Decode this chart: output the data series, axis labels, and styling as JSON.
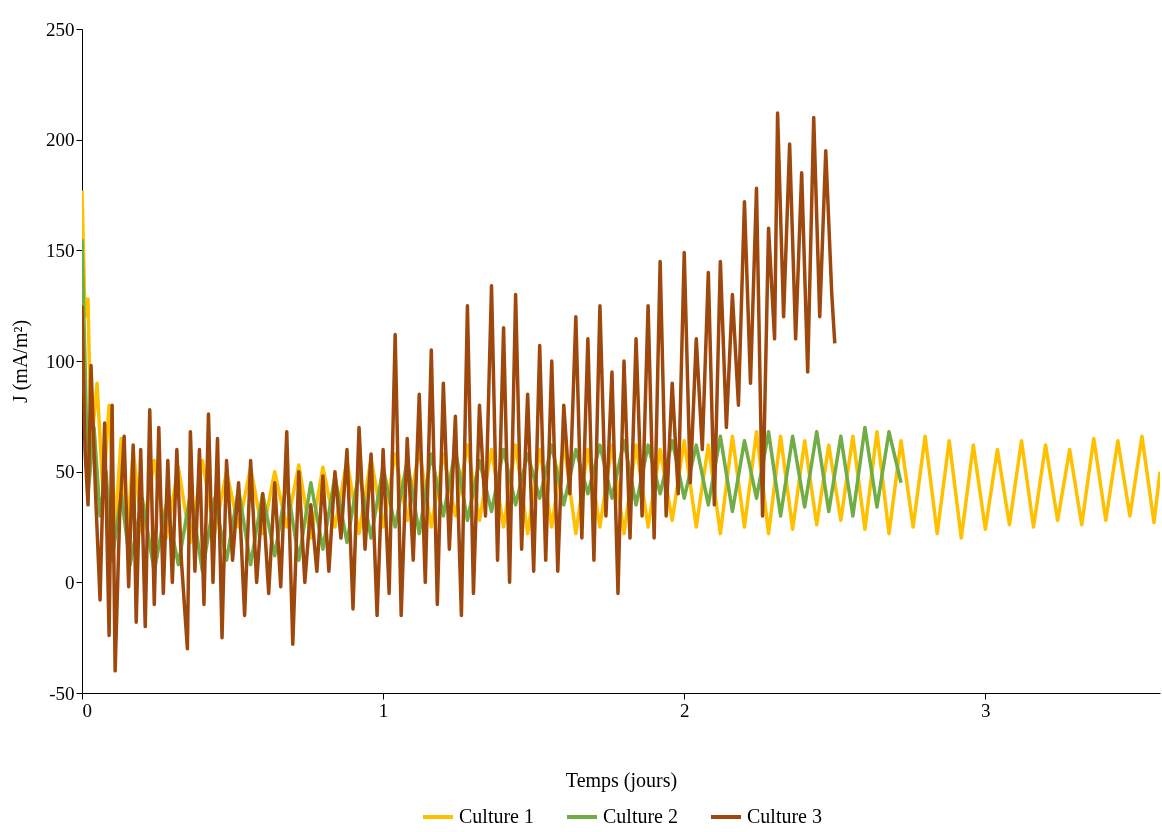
{
  "chart_data": {
    "type": "line",
    "xlabel": "Temps (jours)",
    "ylabel": "J (mA/m²)",
    "xlim": [
      0,
      3.58
    ],
    "xticks": [
      0,
      1,
      2,
      3
    ],
    "ylim": [
      -50,
      250
    ],
    "yticks": [
      -50,
      0,
      50,
      100,
      150,
      200,
      250
    ],
    "grid": false,
    "legend": "bottom",
    "marker": "none",
    "line_style": "solid",
    "series": [
      {
        "name": "Culture 1",
        "color": "#ffc000",
        "x": [
          0,
          0.01,
          0.02,
          0.03,
          0.05,
          0.07,
          0.09,
          0.11,
          0.13,
          0.15,
          0.17,
          0.2,
          0.24,
          0.28,
          0.32,
          0.36,
          0.4,
          0.44,
          0.48,
          0.52,
          0.56,
          0.6,
          0.64,
          0.68,
          0.72,
          0.76,
          0.8,
          0.84,
          0.88,
          0.92,
          0.96,
          1.0,
          1.04,
          1.08,
          1.12,
          1.16,
          1.2,
          1.24,
          1.28,
          1.32,
          1.36,
          1.4,
          1.44,
          1.48,
          1.52,
          1.56,
          1.6,
          1.64,
          1.68,
          1.72,
          1.76,
          1.8,
          1.84,
          1.88,
          1.92,
          1.96,
          2.0,
          2.04,
          2.08,
          2.12,
          2.16,
          2.2,
          2.24,
          2.28,
          2.32,
          2.36,
          2.4,
          2.44,
          2.48,
          2.52,
          2.56,
          2.6,
          2.64,
          2.68,
          2.72,
          2.76,
          2.8,
          2.84,
          2.88,
          2.92,
          2.96,
          3.0,
          3.04,
          3.08,
          3.12,
          3.16,
          3.2,
          3.24,
          3.28,
          3.32,
          3.36,
          3.4,
          3.44,
          3.48,
          3.52,
          3.56,
          3.58
        ],
        "values": [
          177,
          120,
          128,
          60,
          90,
          40,
          80,
          25,
          65,
          20,
          60,
          22,
          55,
          20,
          52,
          18,
          55,
          22,
          50,
          25,
          52,
          22,
          50,
          25,
          53,
          20,
          52,
          25,
          55,
          22,
          56,
          25,
          58,
          28,
          60,
          25,
          58,
          30,
          62,
          28,
          60,
          25,
          62,
          22,
          60,
          25,
          63,
          22,
          60,
          25,
          62,
          22,
          62,
          25,
          60,
          28,
          64,
          25,
          62,
          22,
          66,
          25,
          68,
          22,
          66,
          24,
          64,
          26,
          62,
          28,
          66,
          24,
          68,
          22,
          64,
          25,
          66,
          22,
          64,
          20,
          62,
          24,
          60,
          26,
          64,
          25,
          62,
          28,
          60,
          26,
          65,
          28,
          64,
          30,
          66,
          27,
          50
        ]
      },
      {
        "name": "Culture 2",
        "color": "#70ad47",
        "x": [
          0,
          0.01,
          0.02,
          0.04,
          0.06,
          0.08,
          0.1,
          0.13,
          0.16,
          0.2,
          0.24,
          0.28,
          0.32,
          0.36,
          0.4,
          0.44,
          0.48,
          0.52,
          0.56,
          0.6,
          0.64,
          0.68,
          0.72,
          0.76,
          0.8,
          0.84,
          0.88,
          0.92,
          0.96,
          1.0,
          1.04,
          1.08,
          1.12,
          1.16,
          1.2,
          1.24,
          1.28,
          1.32,
          1.36,
          1.4,
          1.44,
          1.48,
          1.52,
          1.56,
          1.6,
          1.64,
          1.68,
          1.72,
          1.76,
          1.8,
          1.84,
          1.88,
          1.92,
          1.96,
          2.0,
          2.04,
          2.08,
          2.12,
          2.16,
          2.2,
          2.24,
          2.28,
          2.32,
          2.36,
          2.4,
          2.44,
          2.48,
          2.52,
          2.56,
          2.6,
          2.64,
          2.68,
          2.72
        ],
        "values": [
          155,
          100,
          40,
          70,
          30,
          50,
          10,
          40,
          8,
          38,
          5,
          35,
          8,
          40,
          5,
          38,
          10,
          42,
          8,
          40,
          12,
          45,
          10,
          45,
          15,
          48,
          18,
          50,
          20,
          52,
          25,
          55,
          22,
          58,
          30,
          60,
          28,
          55,
          32,
          60,
          35,
          58,
          38,
          62,
          35,
          60,
          40,
          62,
          38,
          64,
          35,
          62,
          40,
          64,
          38,
          62,
          35,
          66,
          32,
          64,
          38,
          68,
          30,
          66,
          34,
          68,
          32,
          66,
          30,
          70,
          34,
          68,
          45
        ]
      },
      {
        "name": "Culture 3",
        "color": "#9e480e",
        "x": [
          0,
          0.01,
          0.02,
          0.03,
          0.045,
          0.06,
          0.075,
          0.09,
          0.1,
          0.11,
          0.125,
          0.14,
          0.155,
          0.17,
          0.18,
          0.195,
          0.21,
          0.225,
          0.24,
          0.255,
          0.27,
          0.285,
          0.3,
          0.315,
          0.33,
          0.35,
          0.36,
          0.375,
          0.39,
          0.405,
          0.42,
          0.435,
          0.45,
          0.465,
          0.48,
          0.5,
          0.52,
          0.54,
          0.56,
          0.58,
          0.6,
          0.62,
          0.64,
          0.66,
          0.68,
          0.7,
          0.72,
          0.74,
          0.76,
          0.78,
          0.8,
          0.82,
          0.84,
          0.86,
          0.88,
          0.9,
          0.92,
          0.94,
          0.96,
          0.98,
          1.0,
          1.02,
          1.04,
          1.06,
          1.08,
          1.1,
          1.12,
          1.14,
          1.16,
          1.18,
          1.2,
          1.22,
          1.24,
          1.26,
          1.28,
          1.3,
          1.32,
          1.34,
          1.36,
          1.38,
          1.4,
          1.42,
          1.44,
          1.46,
          1.48,
          1.5,
          1.52,
          1.54,
          1.56,
          1.58,
          1.6,
          1.62,
          1.64,
          1.66,
          1.68,
          1.7,
          1.72,
          1.74,
          1.76,
          1.78,
          1.8,
          1.82,
          1.84,
          1.86,
          1.88,
          1.9,
          1.92,
          1.94,
          1.96,
          1.98,
          2.0,
          2.02,
          2.04,
          2.06,
          2.08,
          2.1,
          2.12,
          2.14,
          2.16,
          2.18,
          2.2,
          2.22,
          2.24,
          2.26,
          2.28,
          2.3,
          2.31,
          2.33,
          2.35,
          2.37,
          2.39,
          2.41,
          2.43,
          2.45,
          2.47,
          2.49,
          2.5
        ],
        "values": [
          125,
          60,
          35,
          98,
          40,
          -8,
          72,
          -24,
          80,
          -40,
          30,
          66,
          -2,
          62,
          -18,
          60,
          -20,
          78,
          -10,
          70,
          -5,
          55,
          0,
          60,
          10,
          -30,
          68,
          5,
          60,
          -10,
          76,
          0,
          65,
          -25,
          55,
          10,
          45,
          -15,
          55,
          0,
          40,
          -5,
          45,
          -2,
          68,
          -28,
          50,
          0,
          35,
          5,
          48,
          5,
          50,
          20,
          60,
          -12,
          70,
          15,
          58,
          -15,
          60,
          -5,
          112,
          -15,
          65,
          10,
          85,
          0,
          105,
          -10,
          90,
          15,
          75,
          -15,
          125,
          -5,
          80,
          30,
          134,
          10,
          115,
          0,
          130,
          15,
          85,
          5,
          107,
          10,
          100,
          5,
          80,
          40,
          120,
          20,
          110,
          10,
          125,
          30,
          95,
          -5,
          100,
          20,
          110,
          30,
          125,
          20,
          145,
          30,
          90,
          40,
          149,
          45,
          110,
          60,
          140,
          35,
          145,
          70,
          130,
          80,
          172,
          90,
          178,
          30,
          160,
          110,
          212,
          120,
          198,
          110,
          185,
          95,
          210,
          120,
          195,
          130,
          108
        ]
      }
    ]
  }
}
